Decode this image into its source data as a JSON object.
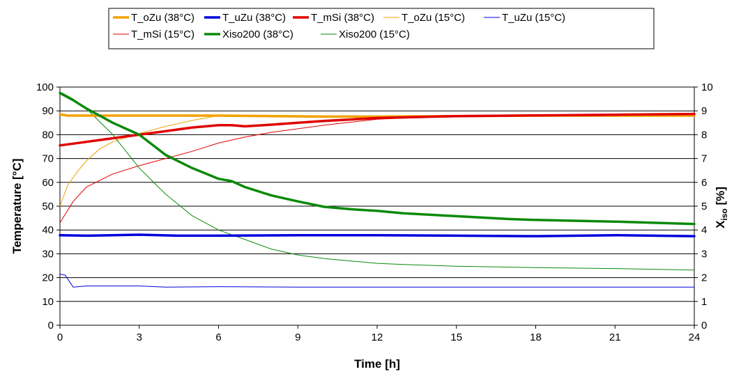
{
  "chart_data": {
    "type": "line",
    "xlabel": "Time [h]",
    "ylabel_left": "Temperature [°C]",
    "ylabel_right_main": "X",
    "ylabel_right_sub": "iso",
    "ylabel_right_unit": " [%]",
    "xlim": [
      0,
      24
    ],
    "ylim_left": [
      0,
      100
    ],
    "ylim_right": [
      0,
      10
    ],
    "xticks": [
      "0",
      "3",
      "6",
      "9",
      "12",
      "15",
      "18",
      "21",
      "24"
    ],
    "yticks_left": [
      "0",
      "10",
      "20",
      "30",
      "40",
      "50",
      "60",
      "70",
      "80",
      "90",
      "100"
    ],
    "yticks_right": [
      "0",
      "1",
      "2",
      "3",
      "4",
      "5",
      "6",
      "7",
      "8",
      "9",
      "10"
    ],
    "grid": "horizontal",
    "legend_position": "top",
    "series": [
      {
        "name": "T_oZu (38°C)",
        "color": "#f2a100",
        "width": 3.5,
        "axis": "left",
        "x": [
          0,
          0.3,
          1,
          2,
          3,
          4,
          6,
          8,
          10,
          12,
          15,
          18,
          21,
          24
        ],
        "y": [
          88.5,
          88,
          88,
          88,
          88,
          88,
          88,
          87.8,
          87.6,
          87.6,
          87.8,
          88,
          88,
          88
        ]
      },
      {
        "name": "T_uZu (38°C)",
        "color": "#0000dd",
        "width": 3.5,
        "axis": "left",
        "x": [
          0,
          1,
          3,
          4.5,
          6,
          9,
          12,
          15,
          18,
          21,
          24
        ],
        "y": [
          37.8,
          37.6,
          38,
          37.6,
          37.6,
          37.8,
          37.8,
          37.6,
          37.4,
          37.8,
          37.4
        ]
      },
      {
        "name": "T_mSi (38°C)",
        "color": "#e00000",
        "width": 3.5,
        "axis": "left",
        "x": [
          0,
          1,
          2,
          3,
          4,
          5,
          6,
          6.5,
          7,
          8,
          9,
          10,
          12,
          15,
          18,
          21,
          24
        ],
        "y": [
          75.5,
          77,
          78.5,
          80,
          81.5,
          83,
          84,
          84,
          83.5,
          84.2,
          85,
          85.8,
          87,
          87.8,
          88.1,
          88.4,
          88.7
        ]
      },
      {
        "name": "T_oZu (15°C)",
        "color": "#f2a100",
        "width": 1,
        "axis": "left",
        "x": [
          0,
          0.3,
          0.7,
          1,
          1.5,
          2,
          3,
          4,
          5,
          6,
          9,
          12,
          14,
          15,
          18,
          21,
          24
        ],
        "y": [
          50,
          59,
          65,
          69,
          74,
          77,
          80.5,
          83.5,
          86,
          88,
          88,
          87.5,
          87.5,
          87.8,
          88,
          88,
          88
        ]
      },
      {
        "name": "T_uZu (15°C)",
        "color": "#0000dd",
        "width": 1,
        "axis": "left",
        "x": [
          0,
          0.2,
          0.5,
          1,
          2,
          3,
          4,
          6,
          9,
          12,
          15,
          18,
          21,
          24
        ],
        "y": [
          21.5,
          21,
          16,
          16.5,
          16.5,
          16.5,
          16,
          16.2,
          16,
          16,
          16,
          16,
          16,
          16
        ]
      },
      {
        "name": "T_mSi (15°C)",
        "color": "#e00000",
        "width": 1,
        "axis": "left",
        "x": [
          0,
          0.5,
          1,
          2,
          3,
          4,
          5,
          6,
          7,
          8,
          9,
          10,
          12,
          15,
          18,
          21,
          24
        ],
        "y": [
          43,
          52,
          58,
          63.5,
          67,
          70,
          73,
          76.5,
          79,
          81,
          82.5,
          84,
          86.5,
          88,
          88.2,
          88.5,
          88.7
        ]
      },
      {
        "name": "Xiso200 (38°C)",
        "color": "#0a8a0a",
        "width": 3.5,
        "axis": "right",
        "x": [
          0,
          0.5,
          1,
          1.5,
          2,
          3,
          4,
          5,
          6,
          6.5,
          7,
          8,
          9,
          10,
          11,
          12,
          13,
          15,
          17,
          18,
          21,
          24
        ],
        "y": [
          9.75,
          9.45,
          9.1,
          8.8,
          8.5,
          8.0,
          7.15,
          6.6,
          6.15,
          6.05,
          5.8,
          5.45,
          5.2,
          4.97,
          4.87,
          4.8,
          4.7,
          4.58,
          4.46,
          4.42,
          4.35,
          4.25
        ]
      },
      {
        "name": "Xiso200 (15°C)",
        "color": "#0a8a0a",
        "width": 1,
        "axis": "right",
        "x": [
          0,
          0.5,
          1,
          2,
          3,
          4,
          5,
          6,
          7,
          8,
          9,
          10,
          11,
          12,
          13,
          15,
          18,
          21,
          24
        ],
        "y": [
          9.8,
          9.5,
          9.1,
          8.0,
          6.6,
          5.5,
          4.6,
          4.0,
          3.6,
          3.2,
          2.95,
          2.8,
          2.7,
          2.6,
          2.55,
          2.48,
          2.42,
          2.38,
          2.32
        ]
      }
    ]
  }
}
